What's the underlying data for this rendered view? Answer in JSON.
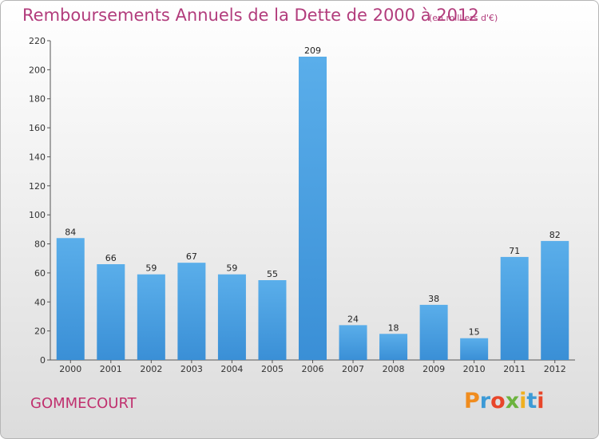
{
  "chart_data": {
    "type": "bar",
    "title": "Remboursements Annuels de la Dette de 2000 à 2012",
    "unit_note": "(en milliers d'€)",
    "categories": [
      "2000",
      "2001",
      "2002",
      "2003",
      "2004",
      "2005",
      "2006",
      "2007",
      "2008",
      "2009",
      "2010",
      "2011",
      "2012"
    ],
    "values": [
      84,
      66,
      59,
      67,
      59,
      55,
      209,
      24,
      18,
      38,
      15,
      71,
      82
    ],
    "ylim": [
      0,
      220
    ],
    "yticks": [
      0,
      20,
      40,
      60,
      80,
      100,
      120,
      140,
      160,
      180,
      200,
      220
    ],
    "xlabel": "",
    "ylabel": "",
    "grid": false,
    "bar_color": "#3a8fd6",
    "bar_color_light": "#5aaeea"
  },
  "footer": {
    "commune": "GOMMECOURT",
    "logo": "Proxiti",
    "logo_colors": [
      "#f08c1e",
      "#3c9ad6",
      "#e8462a",
      "#6cb33e",
      "#f0b020",
      "#3c9ad6",
      "#e8462a"
    ]
  },
  "colors": {
    "title": "#b23c7c",
    "commune": "#c0306e"
  }
}
